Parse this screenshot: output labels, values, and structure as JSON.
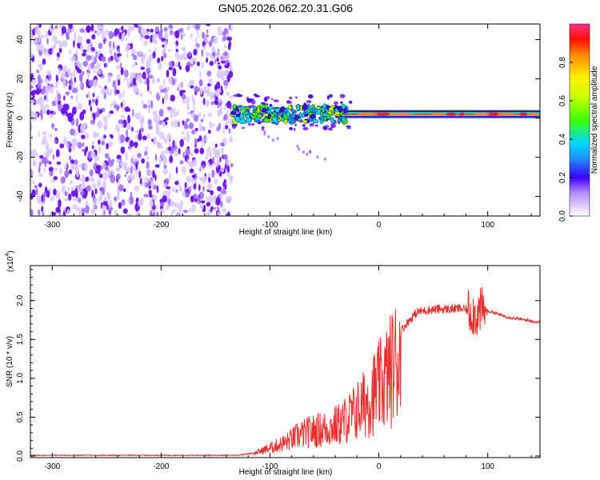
{
  "title": "GN05.2026.062.20.31.G06",
  "chart_data": [
    {
      "type": "heatmap",
      "name": "spectrogram",
      "xlabel": "Height of straight line (km)",
      "ylabel": "Frequency (Hz)",
      "xlim": [
        -320,
        148
      ],
      "ylim": [
        -50,
        48
      ],
      "x_ticks": [
        {
          "value": -300,
          "label": "-300"
        },
        {
          "value": -200,
          "label": "-200"
        },
        {
          "value": -100,
          "label": "-100"
        },
        {
          "value": 0,
          "label": "0"
        },
        {
          "value": 100,
          "label": "100"
        }
      ],
      "y_ticks": [
        {
          "value": -40,
          "label": "-40"
        },
        {
          "value": -20,
          "label": "-20"
        },
        {
          "value": 0,
          "label": "0"
        },
        {
          "value": 20,
          "label": "20"
        },
        {
          "value": 40,
          "label": "40"
        }
      ],
      "noise_region_km": [
        -320,
        -135
      ],
      "signal_line_hz": 2,
      "signal_start_km": -135,
      "colorbar": {
        "label": "Normalized spectral amplitude",
        "range": [
          0.0,
          1.0
        ],
        "ticks": [
          {
            "value": 0.0,
            "label": "0.0"
          },
          {
            "value": 0.2,
            "label": "0.2"
          },
          {
            "value": 0.4,
            "label": "0.4"
          },
          {
            "value": 0.6,
            "label": "0.6"
          },
          {
            "value": 0.8,
            "label": "0.8"
          }
        ]
      }
    },
    {
      "type": "line",
      "name": "snr",
      "xlabel": "Height of straight line (km)",
      "ylabel": "SNR (10 * v/v)",
      "y_multiplier": "(x10",
      "y_multiplier_exp": "4",
      "xlim": [
        -320,
        148
      ],
      "ylim": [
        -0.02,
        2.45
      ],
      "color": "#e8302e",
      "x_ticks": [
        {
          "value": -300,
          "label": "-300"
        },
        {
          "value": -200,
          "label": "-200"
        },
        {
          "value": -100,
          "label": "-100"
        },
        {
          "value": 0,
          "label": "0"
        },
        {
          "value": 100,
          "label": "100"
        }
      ],
      "y_ticks": [
        {
          "value": 0.0,
          "label": "0.0"
        },
        {
          "value": 0.5,
          "label": "0.5"
        },
        {
          "value": 1.0,
          "label": "1.0"
        },
        {
          "value": 1.5,
          "label": "1.5"
        },
        {
          "value": 2.0,
          "label": "2.0"
        }
      ],
      "series": [
        {
          "name": "SNR",
          "x": [
            -320,
            -200,
            -130,
            -115,
            -105,
            -95,
            -85,
            -75,
            -65,
            -55,
            -45,
            -35,
            -25,
            -15,
            -5,
            5,
            15,
            25,
            35,
            45,
            55,
            65,
            75,
            85,
            90,
            95,
            105,
            115,
            125,
            135,
            148
          ],
          "values": [
            0.01,
            0.01,
            0.01,
            0.04,
            0.1,
            0.16,
            0.22,
            0.32,
            0.38,
            0.42,
            0.45,
            0.52,
            0.65,
            0.8,
            1.0,
            1.2,
            1.5,
            1.7,
            1.85,
            1.88,
            1.89,
            1.89,
            1.9,
            1.86,
            1.82,
            1.88,
            1.85,
            1.8,
            1.77,
            1.75,
            1.72
          ]
        }
      ]
    }
  ]
}
